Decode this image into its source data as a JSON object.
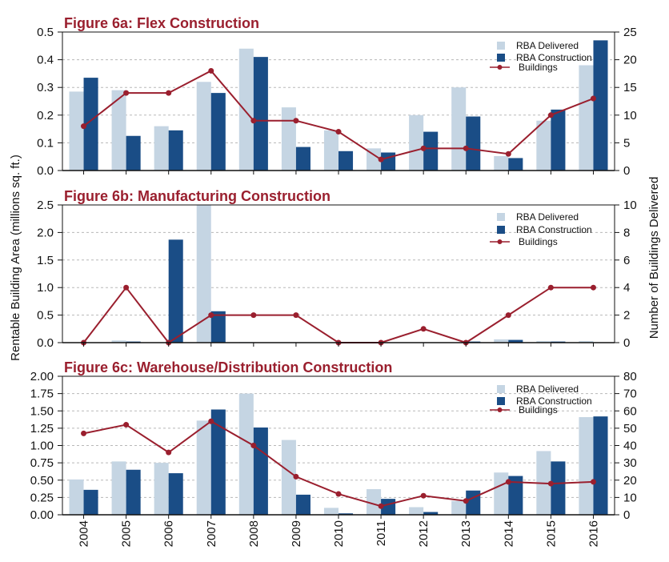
{
  "colors": {
    "rba_delivered": "#c5d5e3",
    "rba_construction": "#1a4d86",
    "buildings": "#9a1f2e",
    "title": "#9a1f2e",
    "grid": "#b8b8b8"
  },
  "y_axis_left_label": "Rentable Building Area (millions sq. ft.)",
  "y_axis_right_label": "Number of Buildings Delivered",
  "chart_data": [
    {
      "type": "bar",
      "title": "Figure 6a:  Flex Construction",
      "categories": [
        "2004",
        "2005",
        "2006",
        "2007",
        "2008",
        "2009",
        "2010",
        "2011",
        "2012",
        "2013",
        "2014",
        "2015",
        "2016"
      ],
      "series": [
        {
          "name": "RBA Delivered",
          "axis": "left",
          "values": [
            0.285,
            0.29,
            0.16,
            0.32,
            0.44,
            0.228,
            0.145,
            0.08,
            0.2,
            0.3,
            0.052,
            0.18,
            0.38
          ]
        },
        {
          "name": "RBA Construction",
          "axis": "left",
          "values": [
            0.335,
            0.125,
            0.145,
            0.28,
            0.41,
            0.085,
            0.07,
            0.065,
            0.14,
            0.195,
            0.045,
            0.22,
            0.47
          ]
        },
        {
          "name": "Buildings",
          "type": "line",
          "axis": "right",
          "values": [
            8,
            14,
            14,
            18,
            9,
            9,
            7,
            2,
            4,
            4,
            3,
            10,
            13
          ]
        }
      ],
      "ylim": [
        0,
        0.5
      ],
      "y_ticks": [
        "0.0",
        "0.1",
        "0.2",
        "0.3",
        "0.4",
        "0.5"
      ],
      "y2lim": [
        0,
        25
      ],
      "y2_ticks": [
        "0",
        "5",
        "10",
        "15",
        "20",
        "25"
      ],
      "legend": "top-right",
      "grid": true
    },
    {
      "type": "bar",
      "title": "Figure 6b:  Manufacturing Construction",
      "categories": [
        "2004",
        "2005",
        "2006",
        "2007",
        "2008",
        "2009",
        "2010",
        "2011",
        "2012",
        "2013",
        "2014",
        "2015",
        "2016"
      ],
      "series": [
        {
          "name": "RBA Delivered",
          "axis": "left",
          "values": [
            0,
            0.04,
            0,
            2.5,
            0.01,
            0,
            0,
            0,
            0,
            0,
            0.06,
            0.03,
            0.03
          ]
        },
        {
          "name": "RBA Construction",
          "axis": "left",
          "values": [
            0,
            0.02,
            1.87,
            0.57,
            0,
            0,
            0,
            0,
            0,
            0.02,
            0.05,
            0.02,
            0
          ]
        },
        {
          "name": "Buildings",
          "type": "line",
          "axis": "right",
          "values": [
            0,
            4,
            0,
            2,
            2,
            2,
            0,
            0,
            1,
            0,
            2,
            4,
            4
          ]
        }
      ],
      "ylim": [
        0,
        2.5
      ],
      "y_ticks": [
        "0.0",
        "0.5",
        "1.0",
        "1.5",
        "2.0",
        "2.5"
      ],
      "y2lim": [
        0,
        10
      ],
      "y2_ticks": [
        "0",
        "2",
        "4",
        "6",
        "8",
        "10"
      ],
      "legend": "top-right",
      "grid": true
    },
    {
      "type": "bar",
      "title": "Figure 6c:  Warehouse/Distribution Construction",
      "categories": [
        "2004",
        "2005",
        "2006",
        "2007",
        "2008",
        "2009",
        "2010",
        "2011",
        "2012",
        "2013",
        "2014",
        "2015",
        "2016"
      ],
      "series": [
        {
          "name": "RBA Delivered",
          "axis": "left",
          "values": [
            0.51,
            0.77,
            0.75,
            1.36,
            1.75,
            1.08,
            0.1,
            0.37,
            0.11,
            0.2,
            0.61,
            0.92,
            1.41
          ]
        },
        {
          "name": "RBA Construction",
          "axis": "left",
          "values": [
            0.36,
            0.65,
            0.6,
            1.52,
            1.26,
            0.29,
            0.02,
            0.23,
            0.04,
            0.35,
            0.56,
            0.77,
            1.42
          ]
        },
        {
          "name": "Buildings",
          "type": "line",
          "axis": "right",
          "values": [
            47,
            52,
            36,
            54,
            40,
            22,
            12,
            5,
            11,
            8,
            19,
            18,
            19
          ]
        }
      ],
      "ylim": [
        0,
        2.0
      ],
      "y_ticks": [
        "0.00",
        "0.25",
        "0.50",
        "0.75",
        "1.00",
        "1.25",
        "1.50",
        "1.75",
        "2.00"
      ],
      "y2lim": [
        0,
        80
      ],
      "y2_ticks": [
        "0",
        "10",
        "20",
        "30",
        "40",
        "50",
        "60",
        "70",
        "80"
      ],
      "legend": "top-right",
      "grid": true
    }
  ]
}
